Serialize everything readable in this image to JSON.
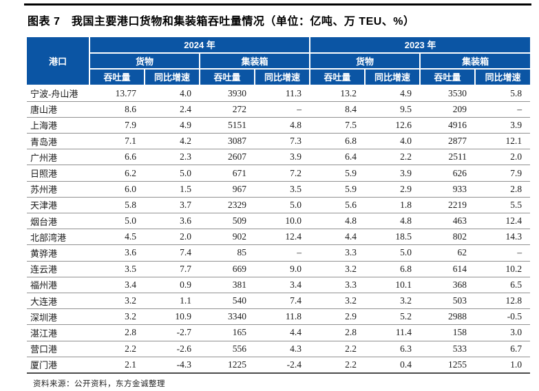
{
  "title": "图表 7　我国主要港口货物和集装箱吞吐量情况（单位：亿吨、万 TEU、%）",
  "table": {
    "port_header": "港口",
    "year_headers": [
      "2024 年",
      "2023 年"
    ],
    "group_headers": [
      "货物",
      "集装箱"
    ],
    "metric_headers": [
      "吞吐量",
      "同比增速"
    ],
    "rows": [
      {
        "port": "宁波-舟山港",
        "values": [
          "13.77",
          "4.0",
          "3930",
          "11.3",
          "13.2",
          "4.9",
          "3530",
          "5.8"
        ]
      },
      {
        "port": "唐山港",
        "values": [
          "8.6",
          "2.4",
          "272",
          "–",
          "8.4",
          "9.5",
          "209",
          "–"
        ]
      },
      {
        "port": "上海港",
        "values": [
          "7.9",
          "4.9",
          "5151",
          "4.8",
          "7.5",
          "12.6",
          "4916",
          "3.9"
        ]
      },
      {
        "port": "青岛港",
        "values": [
          "7.1",
          "4.2",
          "3087",
          "7.3",
          "6.8",
          "4.0",
          "2877",
          "12.1"
        ]
      },
      {
        "port": "广州港",
        "values": [
          "6.6",
          "2.3",
          "2607",
          "3.9",
          "6.4",
          "2.2",
          "2511",
          "2.0"
        ]
      },
      {
        "port": "日照港",
        "values": [
          "6.2",
          "5.0",
          "671",
          "7.2",
          "5.9",
          "3.9",
          "626",
          "7.9"
        ]
      },
      {
        "port": "苏州港",
        "values": [
          "6.0",
          "1.5",
          "967",
          "3.5",
          "5.9",
          "2.9",
          "933",
          "2.8"
        ]
      },
      {
        "port": "天津港",
        "values": [
          "5.8",
          "3.7",
          "2329",
          "5.0",
          "5.6",
          "1.8",
          "2219",
          "5.5"
        ]
      },
      {
        "port": "烟台港",
        "values": [
          "5.0",
          "3.6",
          "509",
          "10.0",
          "4.8",
          "4.8",
          "463",
          "12.4"
        ]
      },
      {
        "port": "北部湾港",
        "values": [
          "4.5",
          "2.0",
          "902",
          "12.4",
          "4.4",
          "18.5",
          "802",
          "14.3"
        ]
      },
      {
        "port": "黄骅港",
        "values": [
          "3.6",
          "7.4",
          "85",
          "–",
          "3.3",
          "5.0",
          "62",
          "–"
        ]
      },
      {
        "port": "连云港",
        "values": [
          "3.5",
          "7.7",
          "669",
          "9.0",
          "3.2",
          "6.8",
          "614",
          "10.2"
        ]
      },
      {
        "port": "福州港",
        "values": [
          "3.4",
          "0.9",
          "381",
          "3.4",
          "3.3",
          "10.1",
          "368",
          "6.5"
        ]
      },
      {
        "port": "大连港",
        "values": [
          "3.2",
          "1.1",
          "540",
          "7.4",
          "3.2",
          "3.2",
          "503",
          "12.8"
        ]
      },
      {
        "port": "深圳港",
        "values": [
          "3.2",
          "10.9",
          "3340",
          "11.8",
          "2.9",
          "5.2",
          "2988",
          "-0.5"
        ]
      },
      {
        "port": "湛江港",
        "values": [
          "2.8",
          "-2.7",
          "165",
          "4.4",
          "2.8",
          "11.4",
          "158",
          "3.0"
        ]
      },
      {
        "port": "营口港",
        "values": [
          "2.2",
          "-2.6",
          "556",
          "4.3",
          "2.2",
          "6.3",
          "533",
          "6.7"
        ]
      },
      {
        "port": "厦门港",
        "values": [
          "2.1",
          "-4.3",
          "1225",
          "-2.4",
          "2.2",
          "0.4",
          "1255",
          "1.0"
        ]
      }
    ]
  },
  "source": "资料来源：公开资料，东方金诚整理",
  "colors": {
    "header_bg": "#0B55A4",
    "row_divider": "#909090",
    "top_rule": "#000000"
  }
}
